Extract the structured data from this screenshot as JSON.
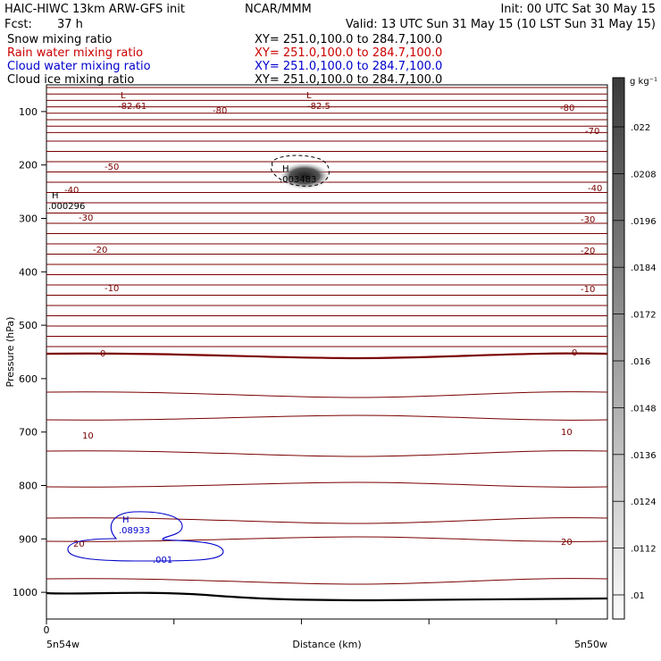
{
  "header": {
    "model": "HAIC-HIWC 13km ARW-GFS init",
    "org": "NCAR/MMM",
    "init": "Init: 00 UTC Sat 30 May 15",
    "fcst_label": "Fcst:",
    "fcst_value": "37 h",
    "valid": "Valid: 13 UTC Sun 31 May 15 (10 LST Sun 31 May 15)"
  },
  "fields": [
    {
      "name": "Snow mixing ratio",
      "xy": "XY= 251.0,100.0 to 284.7,100.0",
      "color": "#000000"
    },
    {
      "name": "Rain water mixing ratio",
      "xy": "XY= 251.0,100.0 to 284.7,100.0",
      "color": "#cc0000"
    },
    {
      "name": "Cloud water mixing ratio",
      "xy": "XY= 251.0,100.0 to 284.7,100.0",
      "color": "#0000cc"
    },
    {
      "name": "Cloud ice mixing ratio",
      "xy": "XY= 251.0,100.0 to 284.7,100.0",
      "color": "#000000"
    }
  ],
  "chart_data": {
    "type": "contour",
    "xlabel": "Distance (km)",
    "ylabel": "Pressure (hPa)",
    "x_tick_labels": [
      "0"
    ],
    "x_end_labels": [
      "5n54w",
      "5n50w"
    ],
    "y_ticks": [
      100,
      200,
      300,
      400,
      500,
      600,
      700,
      800,
      900,
      1000
    ],
    "ylim": [
      1050,
      50
    ],
    "colorbar": {
      "unit": "g kg⁻¹",
      "ticks": [
        ".022",
        ".0208",
        ".0196",
        ".0184",
        ".0172",
        ".016",
        ".0148",
        ".0136",
        ".0124",
        ".0112",
        ".01"
      ]
    },
    "temperature_contour_labels": [
      "-82.61",
      "-82.5",
      "-80",
      "-80",
      "-70",
      "-50",
      "-40",
      "-40",
      "-30",
      "-30",
      "-20",
      "-20",
      "-10",
      "-10",
      "0",
      "0",
      "10",
      "10",
      "20",
      "20"
    ],
    "annotations": {
      "low_left": "L",
      "low_mid": "L",
      "high_ice_label": "H",
      "high_ice_value": ".003483",
      "high_snow_label": "H",
      "high_snow_value": ".000296",
      "high_cloud_label": "H",
      "high_cloud_value": ".08933",
      "cloud_contour_label": ".001"
    }
  },
  "colors": {
    "temperature": "#7a0000",
    "cloud_water": "#0000cc",
    "rain": "#cc0000",
    "axis": "#000000"
  }
}
